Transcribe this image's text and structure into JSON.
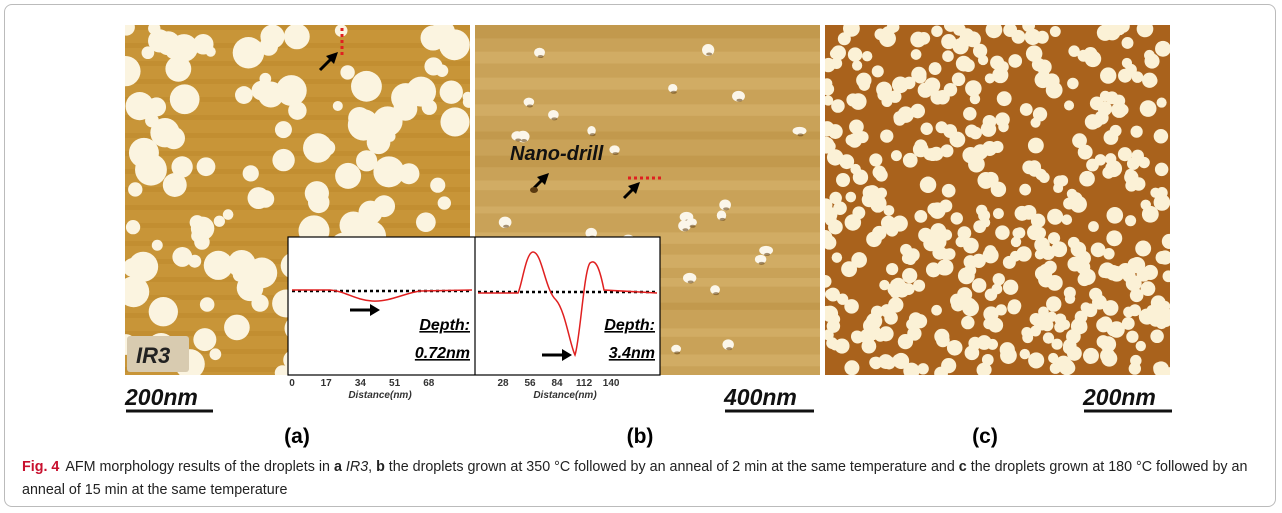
{
  "panel_a": {
    "sample": "IR3",
    "scale_bar": "200nm",
    "label": "(a)"
  },
  "panel_b": {
    "annotation": "Nano-drill",
    "scale_bar": "400nm",
    "label": "(b)"
  },
  "panel_c": {
    "scale_bar": "200nm",
    "label": "(c)"
  },
  "inset": {
    "left": {
      "depth_label": "Depth:",
      "depth": "0.72nm",
      "ticks": [
        0,
        17,
        34,
        51,
        68
      ],
      "axis_title": "Distance(nm)"
    },
    "right": {
      "depth_label": "Depth:",
      "depth": "3.4nm",
      "ticks": [
        28,
        56,
        84,
        112,
        140
      ],
      "axis_title": "Distance(nm)"
    }
  },
  "caption": {
    "label": "Fig. 4",
    "parts": [
      "AFM morphology results of the droplets in ",
      "a",
      "IR3",
      ", ",
      "b",
      " the droplets grown at 350 °C followed by an anneal of 2 min at the same temperature and ",
      "c",
      " the droplets grown at 180 °C followed by an anneal of 15 min at the same temperature"
    ]
  }
}
